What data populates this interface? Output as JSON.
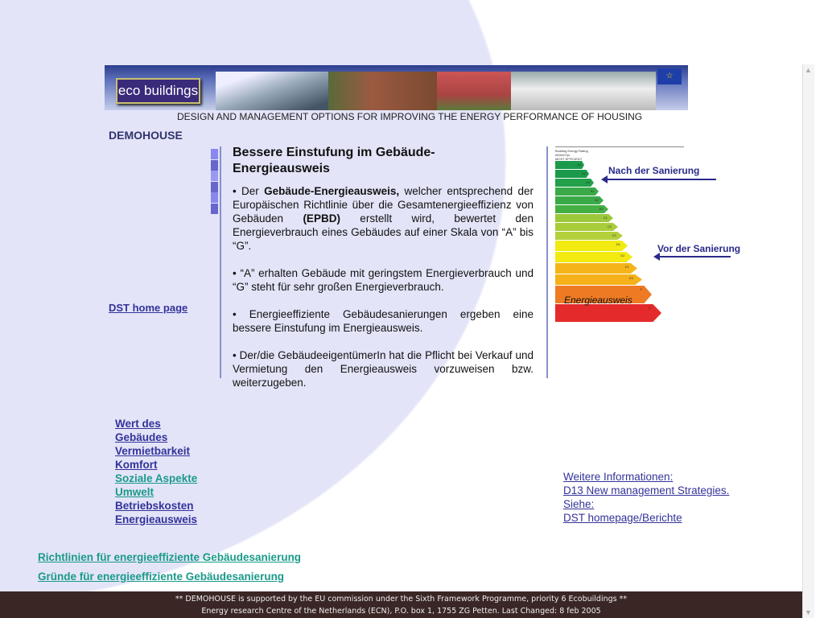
{
  "header": {
    "logo": "ecobuildings",
    "tagline": "DESIGN AND MANAGEMENT OPTIONS FOR IMPROVING THE ENERGY PERFORMANCE OF HOUSING",
    "eu_flag": "eu-flag"
  },
  "sidebar": {
    "section": "DEMOHOUSE",
    "home_link": "DST home page"
  },
  "main": {
    "title": "Bessere Einstufung im Gebäude-Energieausweis",
    "paragraphs": [
      {
        "a": "• Der ",
        "b": "Gebäude-Energieausweis,",
        "c": " welcher entsprechend der Europäischen Richtlinie über die Gesamtenergieeffizienz von Gebäuden ",
        "d": "(EPBD)",
        "e": " erstellt wird, bewertet den Energieverbrauch eines Gebäudes auf einer Skala von “A” bis “G”."
      },
      "• “A” erhalten Gebäude mit geringstem Energieverbrauch und “G” steht für sehr großen Energieverbrauch.",
      "• Energieeffiziente Gebäudesanierungen ergeben eine bessere Einstufung im Energieausweis.",
      "• Der/die GebäudeeigentümerIn hat die Pflicht bei Verkauf und Vermietung den Energieausweis vorzuweisen bzw. weiterzugeben."
    ]
  },
  "figure": {
    "header": [
      "Building Energy Rating",
      "kWh/m²/yr",
      "MOST EFFICIENT"
    ],
    "grades": [
      "A1",
      "A2",
      "A3",
      "B1",
      "B2",
      "B3",
      "C1",
      "C2",
      "C3",
      "D1",
      "D2",
      "E1",
      "E2",
      "F",
      "G"
    ],
    "after_label": "Nach der Sanierung",
    "before_label": "Vor der Sanierung",
    "caption": "Energieausweis"
  },
  "nav": [
    {
      "label": "Wert des",
      "color": "#33339a"
    },
    {
      "label": "Gebäudes",
      "color": "#33339a"
    },
    {
      "label": "Vermietbarkeit",
      "color": "#33339a"
    },
    {
      "label": "Komfort",
      "color": "#33339a"
    },
    {
      "label": "Soziale Aspekte",
      "color": "#1a9a8a"
    },
    {
      "label": "Umwelt",
      "color": "#1a9a8a"
    },
    {
      "label": "Betriebskosten",
      "color": "#33339a"
    },
    {
      "label": "Energieausweis",
      "color": "#33339a"
    }
  ],
  "bottom_links": [
    "Richtlinien für energieeffiziente Gebäudesanierung",
    "Gründe für energieeffiziente Gebäudesanierung"
  ],
  "info": [
    "Weitere Informationen:",
    "D13 New management Strategies.",
    "Siehe:",
    "DST homepage/Berichte"
  ],
  "footer": [
    "** DEMOHOUSE is supported by the EU commission under the Sixth Framework Programme, priority 6 Ecobuildings **",
    "Energy research Centre of the Netherlands (ECN), P.O. box 1, 1755 ZG Petten. Last Changed: 8 feb 2005"
  ]
}
